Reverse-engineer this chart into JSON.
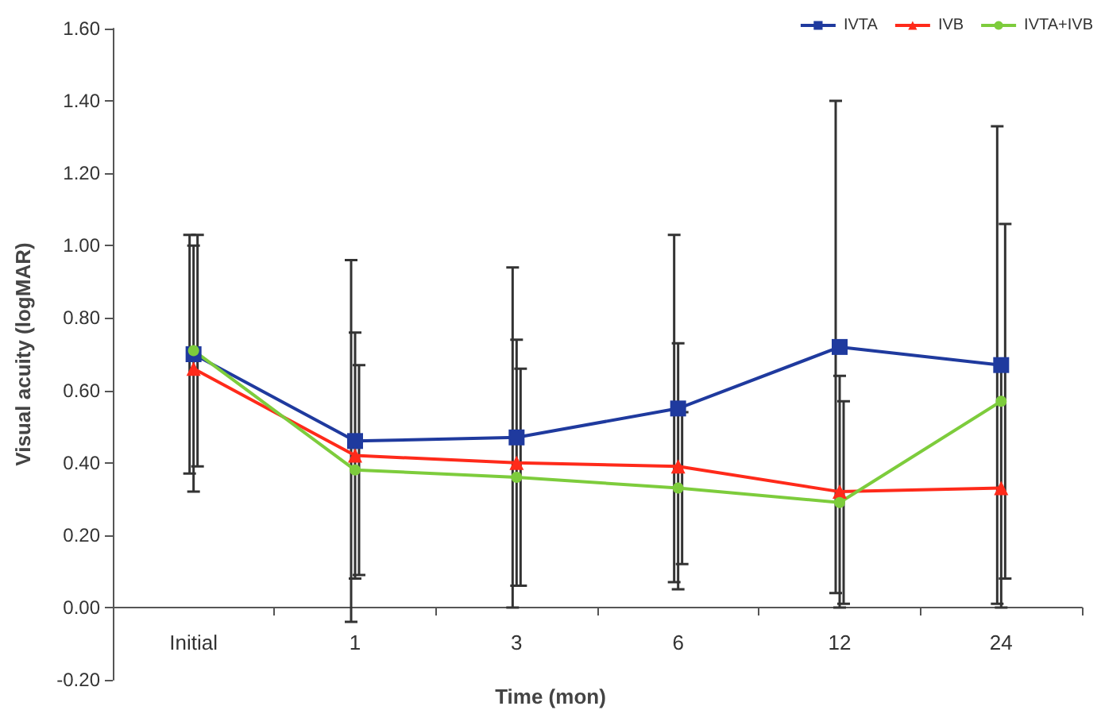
{
  "chart_data": {
    "type": "line",
    "xlabel": "Time (mon)",
    "ylabel": "Visual acuity (logMAR)",
    "categories": [
      "Initial",
      "1",
      "3",
      "6",
      "12",
      "24"
    ],
    "ylim": [
      -0.2,
      1.6
    ],
    "yticks": [
      {
        "value": -0.2,
        "label": "-0.20"
      },
      {
        "value": 0,
        "label": "0.00"
      },
      {
        "value": 0.2,
        "label": "0.20"
      },
      {
        "value": 0.4,
        "label": "0.40"
      },
      {
        "value": 0.6,
        "label": "0.60"
      },
      {
        "value": 0.8,
        "label": "0.80"
      },
      {
        "value": 1.0,
        "label": "1.00"
      },
      {
        "value": 1.2,
        "label": "1.20"
      },
      {
        "value": 1.4,
        "label": "1.40"
      },
      {
        "value": 1.6,
        "label": "1.60"
      }
    ],
    "grid": false,
    "legend": "top right",
    "line_style": "solid",
    "series": [
      {
        "name": "IVTA",
        "color": "#1f3a9e",
        "marker": "square",
        "values": [
          0.7,
          0.46,
          0.47,
          0.55,
          0.72,
          0.67
        ],
        "errors": [
          0.33,
          0.5,
          0.47,
          0.48,
          0.68,
          0.66
        ]
      },
      {
        "name": "IVB",
        "color": "#ff2a1a",
        "marker": "triangle",
        "values": [
          0.66,
          0.42,
          0.4,
          0.39,
          0.32,
          0.33
        ],
        "errors": [
          0.34,
          0.34,
          0.34,
          0.34,
          0.32,
          0.33
        ]
      },
      {
        "name": "IVTA+IVB",
        "color": "#7dcc3c",
        "marker": "circle",
        "values": [
          0.71,
          0.38,
          0.36,
          0.33,
          0.29,
          0.57
        ],
        "errors": [
          0.32,
          0.29,
          0.3,
          0.21,
          0.28,
          0.49
        ]
      }
    ]
  }
}
